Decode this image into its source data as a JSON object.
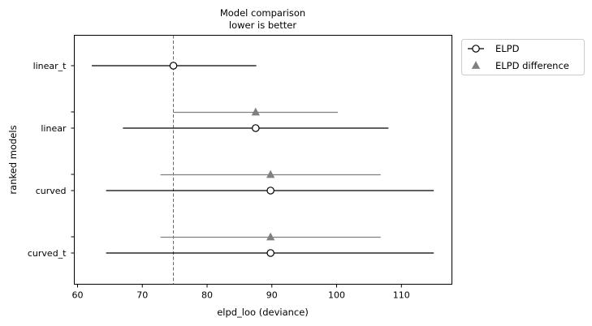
{
  "chart_data": {
    "type": "forest",
    "title": "Model comparison",
    "subtitle": "lower is better",
    "xlabel": "elpd_loo (deviance)",
    "ylabel": "ranked models",
    "xlim": [
      59.5,
      117.8
    ],
    "xticks": [
      60,
      70,
      80,
      90,
      100,
      110
    ],
    "grid": false,
    "legend_position": "outside top-right",
    "reference_line_x": 74.8,
    "models": [
      "linear_t",
      "linear",
      "curved",
      "curved_t"
    ],
    "series": [
      {
        "name": "ELPD",
        "marker": "open-circle",
        "color": "#000000",
        "points": [
          {
            "model": "linear_t",
            "value": 74.8,
            "low": 62.2,
            "high": 87.6
          },
          {
            "model": "linear",
            "value": 87.5,
            "low": 67.0,
            "high": 108.0
          },
          {
            "model": "curved",
            "value": 89.8,
            "low": 64.4,
            "high": 115.0
          },
          {
            "model": "curved_t",
            "value": 89.8,
            "low": 64.4,
            "high": 115.0
          }
        ]
      },
      {
        "name": "ELPD difference",
        "marker": "triangle",
        "color": "#808080",
        "points": [
          {
            "model": "linear",
            "value": 87.5,
            "low": 74.8,
            "high": 100.2
          },
          {
            "model": "curved",
            "value": 89.8,
            "low": 72.8,
            "high": 106.8
          },
          {
            "model": "curved_t",
            "value": 89.8,
            "low": 72.8,
            "high": 106.8
          }
        ]
      }
    ]
  }
}
